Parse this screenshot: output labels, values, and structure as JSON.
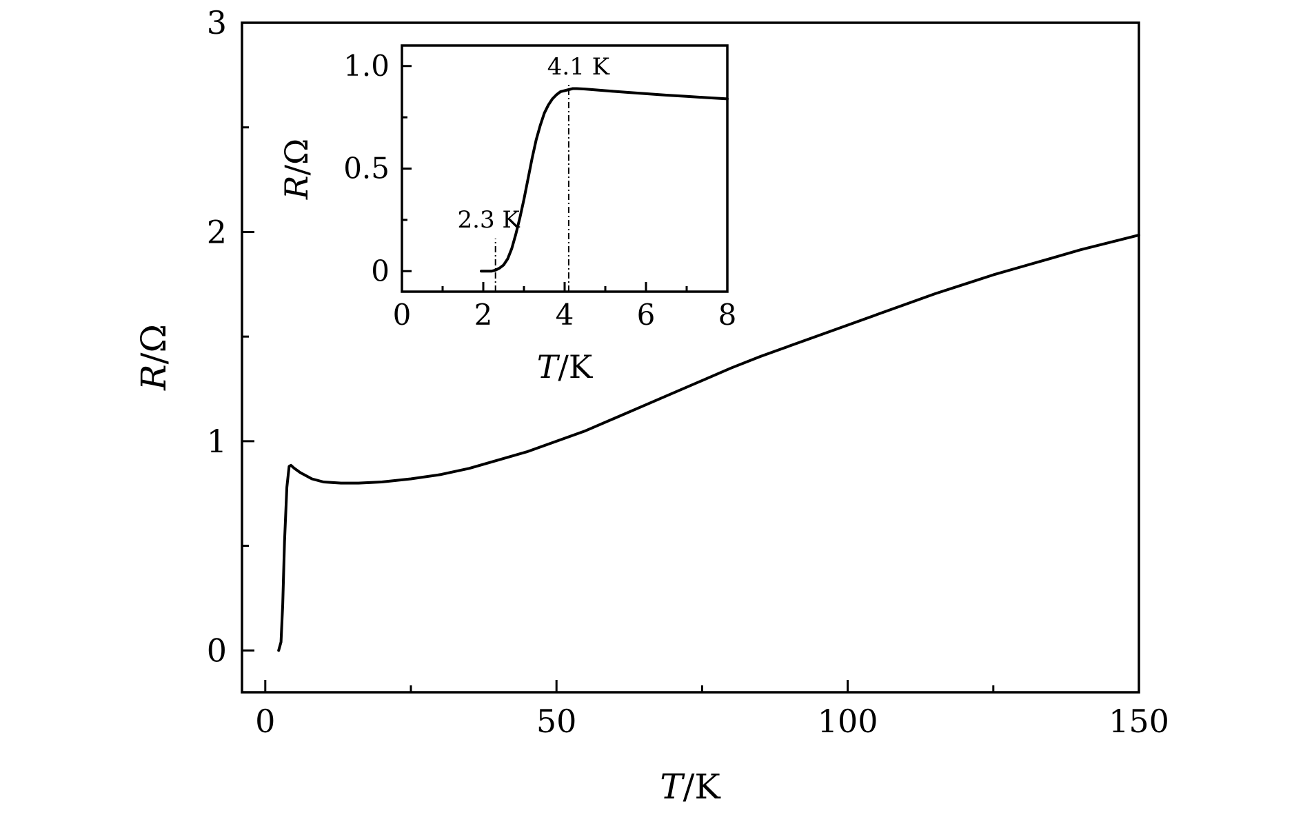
{
  "chart_data": [
    {
      "id": "main",
      "type": "line",
      "xlabel_var": "T",
      "xlabel_unit": "/K",
      "ylabel_var": "R",
      "ylabel_unit": "/Ω",
      "xlim": [
        -4,
        150
      ],
      "ylim": [
        -0.2,
        3
      ],
      "xticks": [
        0,
        50,
        100,
        150
      ],
      "xtick_labels": [
        "0",
        "50",
        "100",
        "150"
      ],
      "xminor": [
        25,
        75,
        125
      ],
      "yticks": [
        0,
        1,
        2,
        3
      ],
      "ytick_labels": [
        "0",
        "1",
        "2",
        "3"
      ],
      "yminor": [
        0.5,
        1.5,
        2.5
      ],
      "grid": false,
      "series": [
        {
          "x": [
            2.3,
            2.7,
            3.0,
            3.3,
            3.7,
            4.1,
            4.4,
            5,
            6,
            8,
            10,
            13,
            16,
            20,
            25,
            30,
            35,
            40,
            45,
            50,
            55,
            60,
            65,
            70,
            75,
            80,
            85,
            90,
            95,
            100,
            105,
            110,
            115,
            120,
            125,
            130,
            135,
            140,
            145,
            150
          ],
          "y": [
            0.0,
            0.04,
            0.22,
            0.52,
            0.78,
            0.88,
            0.885,
            0.87,
            0.85,
            0.82,
            0.805,
            0.8,
            0.8,
            0.805,
            0.82,
            0.84,
            0.87,
            0.91,
            0.95,
            1.0,
            1.05,
            1.11,
            1.17,
            1.23,
            1.29,
            1.35,
            1.405,
            1.455,
            1.505,
            1.555,
            1.605,
            1.655,
            1.705,
            1.75,
            1.795,
            1.835,
            1.875,
            1.915,
            1.95,
            1.985
          ]
        }
      ]
    },
    {
      "id": "inset",
      "type": "line",
      "xlabel_var": "T",
      "xlabel_unit": "/K",
      "ylabel_var": "R",
      "ylabel_unit": "/Ω",
      "xlim": [
        0,
        8
      ],
      "ylim": [
        -0.1,
        1.1
      ],
      "xticks": [
        0,
        2,
        4,
        6,
        8
      ],
      "xtick_labels": [
        "0",
        "2",
        "4",
        "6",
        "8"
      ],
      "xminor": [
        1,
        3,
        5,
        7
      ],
      "yticks": [
        0,
        0.5,
        1.0
      ],
      "ytick_labels": [
        "0",
        "0.5",
        "1.0"
      ],
      "yminor": [
        0.25,
        0.75
      ],
      "grid": false,
      "annotations": [
        {
          "label": "2.3 K",
          "x": 2.3
        },
        {
          "label": "4.1 K",
          "x": 4.1
        }
      ],
      "series": [
        {
          "x": [
            1.95,
            2.1,
            2.2,
            2.3,
            2.4,
            2.5,
            2.6,
            2.7,
            2.8,
            2.9,
            3.0,
            3.1,
            3.2,
            3.3,
            3.4,
            3.5,
            3.6,
            3.7,
            3.8,
            3.9,
            4.0,
            4.1,
            4.2,
            4.3,
            4.5,
            5,
            5.5,
            6,
            6.5,
            7,
            7.5,
            8
          ],
          "y": [
            0.0,
            0.0,
            0.0,
            0.005,
            0.015,
            0.03,
            0.06,
            0.11,
            0.18,
            0.26,
            0.35,
            0.45,
            0.55,
            0.64,
            0.71,
            0.77,
            0.81,
            0.84,
            0.86,
            0.875,
            0.88,
            0.885,
            0.89,
            0.89,
            0.888,
            0.88,
            0.872,
            0.865,
            0.858,
            0.852,
            0.846,
            0.84
          ]
        }
      ]
    }
  ]
}
